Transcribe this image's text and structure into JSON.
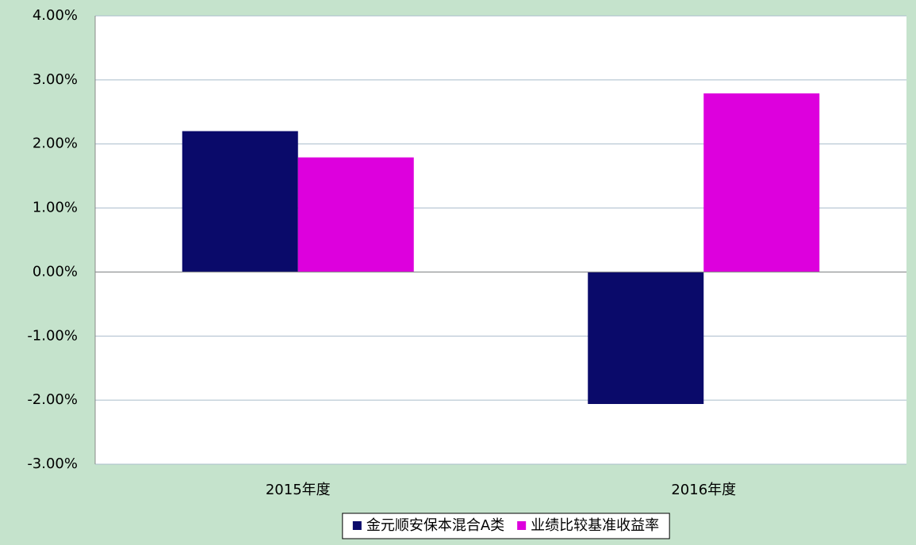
{
  "chart_data": {
    "type": "bar",
    "categories": [
      "2015年度",
      "2016年度"
    ],
    "series": [
      {
        "name": "金元顺安保本混合A类",
        "color": "#0a0a6a",
        "values": [
          2.2,
          -2.06
        ]
      },
      {
        "name": "业绩比较基准收益率",
        "color": "#dd00dd",
        "values": [
          1.79,
          2.79
        ]
      }
    ],
    "ylim": [
      -3,
      4
    ],
    "yticks": [
      {
        "value": -3,
        "label": "-3.00%"
      },
      {
        "value": -2,
        "label": "-2.00%"
      },
      {
        "value": -1,
        "label": "-1.00%"
      },
      {
        "value": 0,
        "label": "0.00%"
      },
      {
        "value": 1,
        "label": "1.00%"
      },
      {
        "value": 2,
        "label": "2.00%"
      },
      {
        "value": 3,
        "label": "3.00%"
      },
      {
        "value": 4,
        "label": "4.00%"
      }
    ],
    "grid": true,
    "legend": "bottom"
  }
}
